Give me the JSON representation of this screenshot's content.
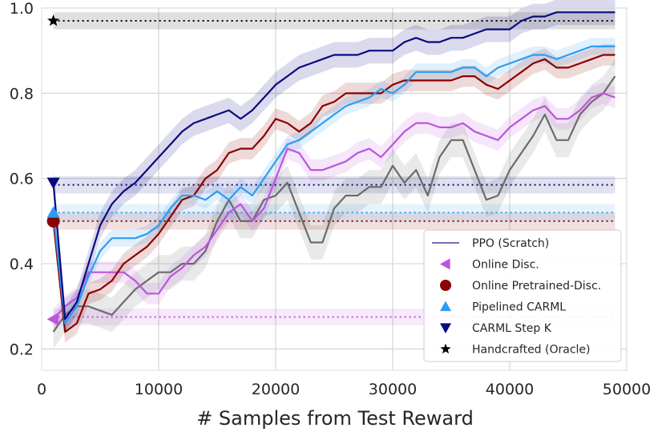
{
  "chart_data": {
    "type": "line",
    "title": "",
    "xlabel": "# Samples from Test Reward",
    "ylabel": "",
    "xlim": [
      0,
      50000
    ],
    "ylim": [
      0.15,
      1.0
    ],
    "xticks": [
      0,
      10000,
      20000,
      30000,
      40000,
      50000
    ],
    "xtick_labels": [
      "0",
      "10000",
      "20000",
      "30000",
      "40000",
      "50000"
    ],
    "yticks": [
      0.2,
      0.4,
      0.6,
      0.8,
      1.0
    ],
    "ytick_labels": [
      "0.2",
      "0.4",
      "0.6",
      "0.8",
      "1.0"
    ],
    "grid": true,
    "legend_position": "lower-right",
    "series": [
      {
        "name": "PPO (Scratch)",
        "color": "#6b6b6b",
        "legend_color": "#7272b8",
        "legend_marker": "line",
        "x": [
          1000,
          2000,
          3000,
          4000,
          5000,
          6000,
          7000,
          8000,
          9000,
          10000,
          11000,
          12000,
          13000,
          14000,
          15000,
          16000,
          17000,
          18000,
          19000,
          20000,
          21000,
          22000,
          23000,
          24000,
          25000,
          26000,
          27000,
          28000,
          29000,
          30000,
          31000,
          32000,
          33000,
          34000,
          35000,
          36000,
          37000,
          38000,
          39000,
          40000,
          41000,
          42000,
          43000,
          44000,
          45000,
          46000,
          47000,
          48000,
          49000
        ],
        "values": [
          0.24,
          0.28,
          0.3,
          0.3,
          0.29,
          0.28,
          0.31,
          0.34,
          0.36,
          0.38,
          0.38,
          0.4,
          0.4,
          0.43,
          0.5,
          0.55,
          0.5,
          0.5,
          0.55,
          0.56,
          0.59,
          0.52,
          0.45,
          0.45,
          0.53,
          0.56,
          0.56,
          0.58,
          0.58,
          0.63,
          0.59,
          0.62,
          0.56,
          0.65,
          0.69,
          0.69,
          0.62,
          0.55,
          0.56,
          0.62,
          0.66,
          0.7,
          0.75,
          0.69,
          0.69,
          0.75,
          0.78,
          0.8,
          0.84
        ],
        "band": 0.04
      },
      {
        "name": "Online Disc.",
        "color": "#bb55dd",
        "legend_color": "#bb55dd",
        "legend_marker": "triangle-left",
        "x": [
          1000,
          2000,
          3000,
          4000,
          5000,
          6000,
          7000,
          8000,
          9000,
          10000,
          11000,
          12000,
          13000,
          14000,
          15000,
          16000,
          17000,
          18000,
          19000,
          20000,
          21000,
          22000,
          23000,
          24000,
          25000,
          26000,
          27000,
          28000,
          29000,
          30000,
          31000,
          32000,
          33000,
          34000,
          35000,
          36000,
          37000,
          38000,
          39000,
          40000,
          41000,
          42000,
          43000,
          44000,
          45000,
          46000,
          47000,
          48000,
          49000
        ],
        "values": [
          0.27,
          0.3,
          0.32,
          0.38,
          0.38,
          0.38,
          0.38,
          0.36,
          0.33,
          0.33,
          0.37,
          0.39,
          0.42,
          0.44,
          0.48,
          0.52,
          0.54,
          0.5,
          0.53,
          0.6,
          0.67,
          0.66,
          0.62,
          0.62,
          0.63,
          0.64,
          0.66,
          0.67,
          0.65,
          0.68,
          0.71,
          0.73,
          0.73,
          0.72,
          0.72,
          0.73,
          0.71,
          0.7,
          0.69,
          0.72,
          0.74,
          0.76,
          0.77,
          0.74,
          0.74,
          0.76,
          0.79,
          0.8,
          0.79
        ],
        "band": 0.025,
        "marker": {
          "x": 1000,
          "y": 0.27,
          "shape": "triangle-left"
        },
        "baseline": 0.275
      },
      {
        "name": "Online Pretrained-Disc.",
        "color": "#8b0000",
        "legend_color": "#8b0000",
        "legend_marker": "circle",
        "x": [
          1000,
          2000,
          3000,
          4000,
          5000,
          6000,
          7000,
          8000,
          9000,
          10000,
          11000,
          12000,
          13000,
          14000,
          15000,
          16000,
          17000,
          18000,
          19000,
          20000,
          21000,
          22000,
          23000,
          24000,
          25000,
          26000,
          27000,
          28000,
          29000,
          30000,
          31000,
          32000,
          33000,
          34000,
          35000,
          36000,
          37000,
          38000,
          39000,
          40000,
          41000,
          42000,
          43000,
          44000,
          45000,
          46000,
          47000,
          48000,
          49000
        ],
        "values": [
          0.5,
          0.24,
          0.26,
          0.33,
          0.34,
          0.36,
          0.4,
          0.42,
          0.44,
          0.47,
          0.51,
          0.55,
          0.56,
          0.6,
          0.62,
          0.66,
          0.67,
          0.67,
          0.7,
          0.74,
          0.73,
          0.71,
          0.73,
          0.77,
          0.78,
          0.8,
          0.8,
          0.8,
          0.8,
          0.82,
          0.83,
          0.83,
          0.83,
          0.83,
          0.83,
          0.84,
          0.84,
          0.82,
          0.81,
          0.83,
          0.85,
          0.87,
          0.88,
          0.86,
          0.86,
          0.87,
          0.88,
          0.89,
          0.89
        ],
        "band": 0.025,
        "marker": {
          "x": 1000,
          "y": 0.5,
          "shape": "circle"
        },
        "baseline": 0.5
      },
      {
        "name": "Pipelined CARML",
        "color": "#2f9cf0",
        "legend_color": "#2f9cf0",
        "legend_marker": "triangle-up",
        "x": [
          1000,
          2000,
          3000,
          4000,
          5000,
          6000,
          7000,
          8000,
          9000,
          10000,
          11000,
          12000,
          13000,
          14000,
          15000,
          16000,
          17000,
          18000,
          19000,
          20000,
          21000,
          22000,
          23000,
          24000,
          25000,
          26000,
          27000,
          28000,
          29000,
          30000,
          31000,
          32000,
          33000,
          34000,
          35000,
          36000,
          37000,
          38000,
          39000,
          40000,
          41000,
          42000,
          43000,
          44000,
          45000,
          46000,
          47000,
          48000,
          49000
        ],
        "values": [
          0.52,
          0.26,
          0.3,
          0.37,
          0.43,
          0.46,
          0.46,
          0.46,
          0.47,
          0.49,
          0.53,
          0.56,
          0.56,
          0.55,
          0.57,
          0.55,
          0.58,
          0.56,
          0.6,
          0.64,
          0.68,
          0.69,
          0.71,
          0.73,
          0.75,
          0.77,
          0.78,
          0.79,
          0.81,
          0.8,
          0.82,
          0.85,
          0.85,
          0.85,
          0.85,
          0.86,
          0.86,
          0.84,
          0.86,
          0.87,
          0.88,
          0.89,
          0.89,
          0.88,
          0.89,
          0.9,
          0.91,
          0.91,
          0.91
        ],
        "band": 0.02,
        "marker": {
          "x": 1000,
          "y": 0.52,
          "shape": "triangle-up"
        },
        "baseline": 0.52
      },
      {
        "name": "CARML Step K",
        "color": "#0a0a80",
        "legend_color": "#0a0a80",
        "legend_marker": "triangle-down",
        "x": [
          1000,
          2000,
          3000,
          4000,
          5000,
          6000,
          7000,
          8000,
          9000,
          10000,
          11000,
          12000,
          13000,
          14000,
          15000,
          16000,
          17000,
          18000,
          19000,
          20000,
          21000,
          22000,
          23000,
          24000,
          25000,
          26000,
          27000,
          28000,
          29000,
          30000,
          31000,
          32000,
          33000,
          34000,
          35000,
          36000,
          37000,
          38000,
          39000,
          40000,
          41000,
          42000,
          43000,
          44000,
          45000,
          46000,
          47000,
          48000,
          49000
        ],
        "values": [
          0.59,
          0.27,
          0.31,
          0.4,
          0.49,
          0.54,
          0.57,
          0.59,
          0.62,
          0.65,
          0.68,
          0.71,
          0.73,
          0.74,
          0.75,
          0.76,
          0.74,
          0.76,
          0.79,
          0.82,
          0.84,
          0.86,
          0.87,
          0.88,
          0.89,
          0.89,
          0.89,
          0.9,
          0.9,
          0.9,
          0.92,
          0.93,
          0.92,
          0.92,
          0.93,
          0.93,
          0.94,
          0.95,
          0.95,
          0.95,
          0.97,
          0.98,
          0.98,
          0.99,
          0.99,
          0.99,
          0.99,
          0.99,
          0.99
        ],
        "band": 0.03,
        "marker": {
          "x": 1000,
          "y": 0.59,
          "shape": "triangle-down"
        },
        "baseline": 0.585
      },
      {
        "name": "Handcrafted (Oracle)",
        "color": "#000000",
        "legend_color": "#000000",
        "legend_marker": "star",
        "x": [],
        "values": [],
        "band": 0.01,
        "marker": {
          "x": 1000,
          "y": 0.97,
          "shape": "star"
        },
        "baseline": 0.97
      }
    ]
  }
}
